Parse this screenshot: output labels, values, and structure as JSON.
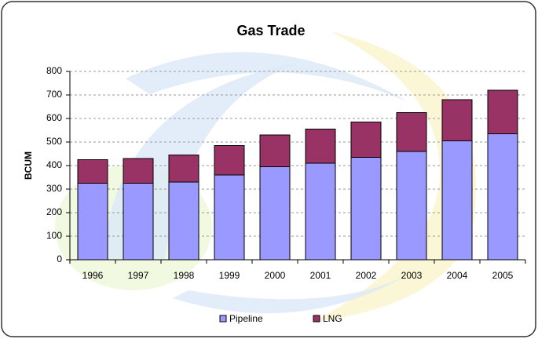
{
  "chart_data": {
    "type": "stacked_bar",
    "title": "Gas Trade",
    "y_label": "BCUM",
    "categories": [
      "1996",
      "1997",
      "1998",
      "1999",
      "2000",
      "2001",
      "2002",
      "2003",
      "2004",
      "2005"
    ],
    "series": [
      {
        "name": "Pipeline",
        "color": "#9999ff",
        "values": [
          325,
          325,
          330,
          360,
          395,
          410,
          435,
          460,
          505,
          535
        ]
      },
      {
        "name": "LNG",
        "color": "#993366",
        "values": [
          100,
          105,
          115,
          125,
          135,
          145,
          150,
          165,
          175,
          185
        ]
      }
    ],
    "ylim": [
      0,
      800
    ],
    "yticks": [
      0,
      100,
      200,
      300,
      400,
      500,
      600,
      700,
      800
    ],
    "grid": true,
    "legend": "bottom"
  }
}
